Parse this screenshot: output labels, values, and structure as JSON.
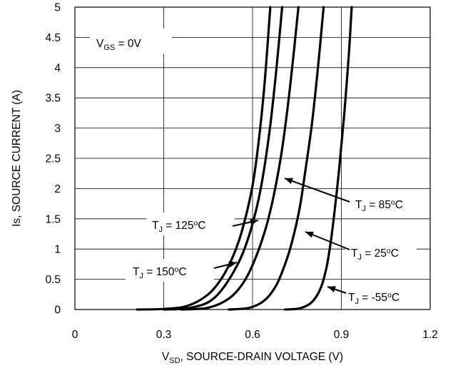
{
  "chart_data": {
    "type": "line",
    "xlabel": {
      "main": "V",
      "sub": "SD",
      "rest": ", SOURCE-DRAIN VOLTAGE (V)"
    },
    "ylabel": "Is, SOURCE CURRENT (A)",
    "xlim": [
      0,
      1.2
    ],
    "ylim": [
      0,
      5
    ],
    "x_ticks": [
      "0",
      "0.3",
      "0.6",
      "0.9",
      "1.2"
    ],
    "y_ticks": [
      "0",
      "0.5",
      "1",
      "1.5",
      "2",
      "2.5",
      "3",
      "3.5",
      "4",
      "4.5",
      "5"
    ],
    "grid": true,
    "condition": {
      "main": "V",
      "sub": "GS",
      "rest": " = 0V"
    },
    "series": [
      {
        "name": "T_J = 150°C",
        "label": {
          "prefix": "T",
          "sub": "J",
          "value": " = 150",
          "sup": "o",
          "unit": "C"
        },
        "x": [
          0.21,
          0.3,
          0.38,
          0.45,
          0.5,
          0.54,
          0.57,
          0.6,
          0.62,
          0.64,
          0.66
        ],
        "y": [
          0.0,
          0.01,
          0.06,
          0.25,
          0.55,
          0.95,
          1.4,
          2.05,
          2.75,
          3.7,
          5.0
        ]
      },
      {
        "name": "T_J = 125°C",
        "label": {
          "prefix": "T",
          "sub": "J",
          "value": " = 125",
          "sup": "o",
          "unit": "C"
        },
        "x": [
          0.3,
          0.38,
          0.45,
          0.5,
          0.55,
          0.58,
          0.61,
          0.635,
          0.66,
          0.68,
          0.7
        ],
        "y": [
          0.0,
          0.02,
          0.12,
          0.35,
          0.75,
          1.1,
          1.6,
          2.2,
          3.05,
          3.95,
          5.0
        ]
      },
      {
        "name": "T_J = 85°C",
        "label": {
          "prefix": "T",
          "sub": "J",
          "value": " = 85",
          "sup": "o",
          "unit": "C"
        },
        "x": [
          0.36,
          0.45,
          0.52,
          0.57,
          0.61,
          0.645,
          0.67,
          0.695,
          0.715,
          0.735,
          0.755
        ],
        "y": [
          0.0,
          0.03,
          0.18,
          0.45,
          0.85,
          1.35,
          1.85,
          2.5,
          3.2,
          4.05,
          5.0
        ]
      },
      {
        "name": "T_J = 25°C",
        "label": {
          "prefix": "T",
          "sub": "J",
          "value": " = 25",
          "sup": "o",
          "unit": "C"
        },
        "x": [
          0.52,
          0.59,
          0.64,
          0.68,
          0.71,
          0.735,
          0.76,
          0.78,
          0.8,
          0.82,
          0.84
        ],
        "y": [
          0.0,
          0.03,
          0.15,
          0.4,
          0.75,
          1.15,
          1.7,
          2.35,
          3.05,
          3.95,
          5.0
        ]
      },
      {
        "name": "T_J = -55°C",
        "label": {
          "prefix": "T",
          "sub": "J",
          "value": " = -55",
          "sup": "o",
          "unit": "C"
        },
        "x": [
          0.71,
          0.76,
          0.8,
          0.83,
          0.85,
          0.865,
          0.88,
          0.895,
          0.91,
          0.925,
          0.935
        ],
        "y": [
          0.0,
          0.02,
          0.12,
          0.35,
          0.7,
          1.15,
          1.75,
          2.45,
          3.25,
          4.2,
          5.0
        ]
      }
    ]
  }
}
